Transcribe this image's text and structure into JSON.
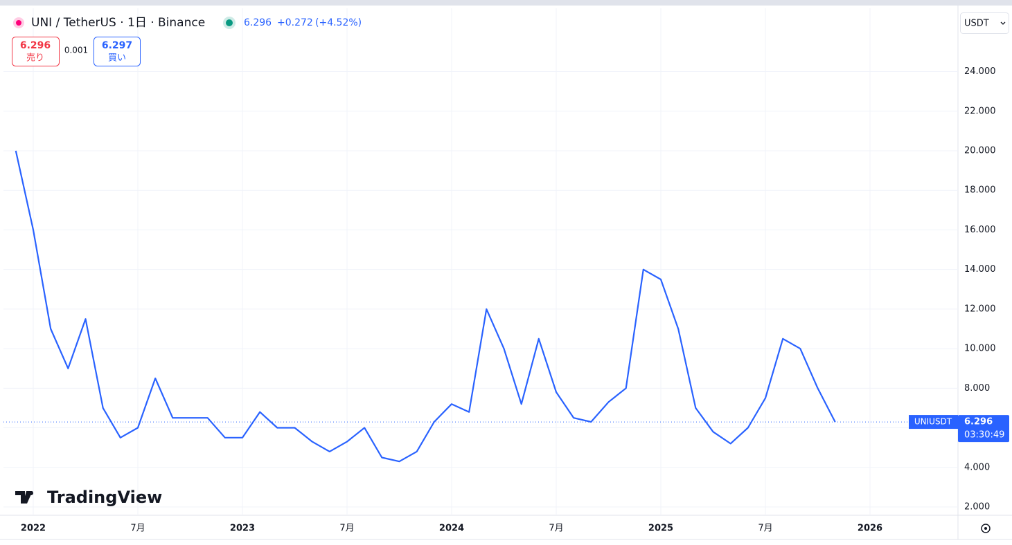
{
  "header": {
    "symbol": "UNI / TetherUS · 1日 · Binance",
    "price": "6.296",
    "change": "+0.272",
    "change_pct": "(+4.52%)",
    "bid": "6.296",
    "bid_label": "売り",
    "spread": "0.001",
    "ask": "6.297",
    "ask_label": "買い",
    "currency": "USDT",
    "watermark": "TradingView"
  },
  "chart_data": {
    "type": "line",
    "x": [
      "2021-12",
      "2022-01",
      "2022-02",
      "2022-03",
      "2022-04",
      "2022-05",
      "2022-06",
      "2022-07",
      "2022-08",
      "2022-09",
      "2022-10",
      "2022-11",
      "2022-12",
      "2023-01",
      "2023-02",
      "2023-03",
      "2023-04",
      "2023-05",
      "2023-06",
      "2023-07",
      "2023-08",
      "2023-09",
      "2023-10",
      "2023-11",
      "2023-12",
      "2024-01",
      "2024-02",
      "2024-03",
      "2024-04",
      "2024-05",
      "2024-06",
      "2024-07",
      "2024-08",
      "2024-09",
      "2024-10",
      "2024-11",
      "2024-12",
      "2025-01",
      "2025-02",
      "2025-03",
      "2025-04",
      "2025-05",
      "2025-06",
      "2025-07",
      "2025-08",
      "2025-09",
      "2025-10",
      "2025-11"
    ],
    "series": [
      {
        "name": "UNIUSDT",
        "color": "#2962ff",
        "values": [
          20,
          16,
          11,
          9,
          11.5,
          7,
          5.5,
          6,
          8.5,
          6.5,
          6.5,
          6.5,
          5.5,
          5.5,
          6.8,
          6,
          6,
          5.3,
          4.8,
          5.3,
          6,
          4.5,
          4.3,
          4.8,
          6.3,
          7.2,
          6.8,
          12,
          10,
          7.2,
          10.5,
          7.8,
          6.5,
          6.3,
          7.3,
          8,
          14,
          13.5,
          11,
          7,
          5.8,
          5.2,
          6,
          7.5,
          10.5,
          10,
          8,
          6.296
        ]
      }
    ],
    "countdown": "03:30:49",
    "ylim": [
      1.58,
      27.2
    ],
    "yticks": [
      {
        "value": 2,
        "label": "2.000"
      },
      {
        "value": 4,
        "label": "4.000"
      },
      {
        "value": 6,
        "label": "6.000"
      },
      {
        "value": 8,
        "label": "8.000"
      },
      {
        "value": 10,
        "label": "10.000"
      },
      {
        "value": 12,
        "label": "12.000"
      },
      {
        "value": 14,
        "label": "14.000"
      },
      {
        "value": 16,
        "label": "16.000"
      },
      {
        "value": 18,
        "label": "18.000"
      },
      {
        "value": 20,
        "label": "20.000"
      },
      {
        "value": 22,
        "label": "22.000"
      },
      {
        "value": 24,
        "label": "24.000"
      }
    ],
    "xticks": [
      {
        "value": "2022-01",
        "label": "2022"
      },
      {
        "value": "2022-07",
        "label": "7月"
      },
      {
        "value": "2023-01",
        "label": "2023"
      },
      {
        "value": "2023-07",
        "label": "7月"
      },
      {
        "value": "2024-01",
        "label": "2024"
      },
      {
        "value": "2024-07",
        "label": "7月"
      },
      {
        "value": "2025-01",
        "label": "2025"
      },
      {
        "value": "2025-07",
        "label": "7月"
      },
      {
        "value": "2026-01",
        "label": "2026"
      }
    ],
    "grid": true
  }
}
